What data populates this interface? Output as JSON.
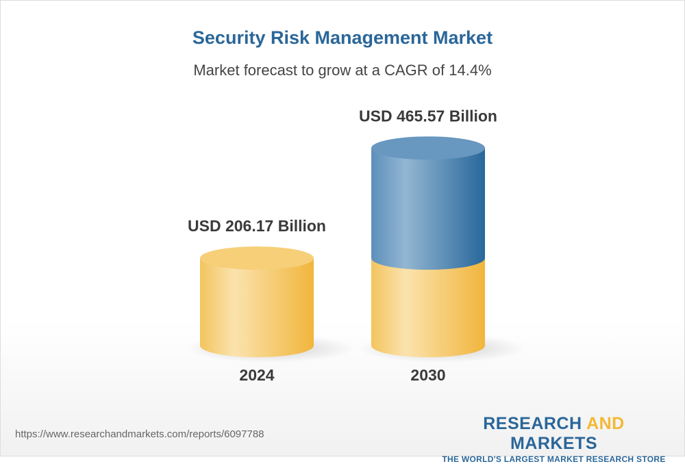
{
  "title": "Security Risk Management Market",
  "subtitle": "Market forecast to grow at a CAGR of 14.4%",
  "chart_data": {
    "type": "bar",
    "style": "3d-cylinder",
    "categories": [
      "2024",
      "2030"
    ],
    "values": [
      206.17,
      465.57
    ],
    "data_labels": [
      "USD 206.17 Billion",
      "USD 465.57 Billion"
    ],
    "unit": "USD Billion",
    "cagr": "14.4%",
    "colors": {
      "base": "#f4c25a",
      "growth": "#2f6e9f"
    }
  },
  "footer": {
    "url": "https://www.researchandmarkets.com/reports/6097788",
    "logo_part1": "RESEARCH ",
    "logo_part2": "AND",
    "logo_part3": " MARKETS",
    "logo_tagline": "THE WORLD'S LARGEST MARKET RESEARCH STORE"
  }
}
